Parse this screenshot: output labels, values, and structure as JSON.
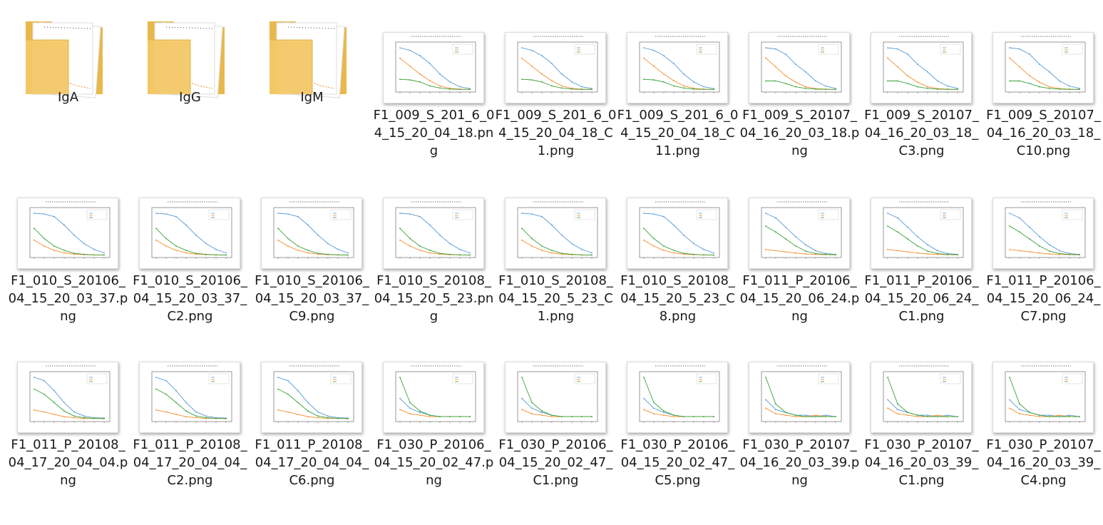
{
  "colors": {
    "blue": "#5a9bd5",
    "orange": "#f28e2b",
    "green": "#3aa13a",
    "folder": "#f3c766"
  },
  "folders": [
    {
      "label": "IgA",
      "icon": "folder-icon"
    },
    {
      "label": "IgG",
      "icon": "folder-icon"
    },
    {
      "label": "IgM",
      "icon": "folder-icon"
    }
  ],
  "files": [
    {
      "label": "F1_009_S_201_6_04_15_20_04_18.png",
      "lines": [
        [
          1.6,
          1.5,
          1.3,
          1.0,
          0.6,
          0.3,
          0.12,
          0.05
        ],
        [
          1.2,
          0.9,
          0.6,
          0.35,
          0.15,
          0.06,
          0.03,
          0.02
        ],
        [
          0.4,
          0.38,
          0.3,
          0.15,
          0.07,
          0.03,
          0.02,
          0.02
        ]
      ]
    },
    {
      "label": "F1_009_S_201_6_04_15_20_04_18_C1.png",
      "lines": [
        [
          1.6,
          1.5,
          1.3,
          1.0,
          0.6,
          0.3,
          0.12,
          0.05
        ],
        [
          1.2,
          0.9,
          0.6,
          0.35,
          0.15,
          0.06,
          0.03,
          0.02
        ],
        [
          0.4,
          0.38,
          0.3,
          0.15,
          0.07,
          0.03,
          0.02,
          0.02
        ]
      ]
    },
    {
      "label": "F1_009_S_201_6_04_15_20_04_18_C11.png",
      "lines": [
        [
          1.6,
          1.5,
          1.3,
          1.0,
          0.6,
          0.3,
          0.12,
          0.05
        ],
        [
          1.2,
          0.9,
          0.6,
          0.35,
          0.15,
          0.06,
          0.03,
          0.02
        ],
        [
          0.4,
          0.38,
          0.3,
          0.15,
          0.07,
          0.03,
          0.02,
          0.02
        ]
      ]
    },
    {
      "label": "F1_009_S_20107_04_16_20_03_18.png",
      "lines": [
        [
          1.65,
          1.6,
          1.4,
          1.0,
          0.7,
          0.35,
          0.15,
          0.06
        ],
        [
          1.25,
          0.9,
          0.55,
          0.3,
          0.12,
          0.05,
          0.03,
          0.02
        ],
        [
          0.35,
          0.35,
          0.25,
          0.12,
          0.06,
          0.03,
          0.02,
          0.02
        ]
      ]
    },
    {
      "label": "F1_009_S_20107_04_16_20_03_18_C3.png",
      "lines": [
        [
          1.65,
          1.6,
          1.4,
          1.0,
          0.7,
          0.35,
          0.15,
          0.06
        ],
        [
          1.25,
          0.9,
          0.55,
          0.3,
          0.12,
          0.05,
          0.03,
          0.02
        ],
        [
          0.35,
          0.35,
          0.25,
          0.12,
          0.06,
          0.03,
          0.02,
          0.02
        ]
      ]
    },
    {
      "label": "F1_009_S_20107_04_16_20_03_18_C10.png",
      "lines": [
        [
          1.65,
          1.6,
          1.4,
          1.0,
          0.7,
          0.35,
          0.15,
          0.06
        ],
        [
          1.25,
          0.9,
          0.55,
          0.3,
          0.12,
          0.05,
          0.03,
          0.02
        ],
        [
          0.35,
          0.35,
          0.25,
          0.12,
          0.06,
          0.03,
          0.02,
          0.02
        ]
      ]
    },
    {
      "label": "F1_010_S_20106_04_15_20_03_37.png",
      "lines": [
        [
          2.5,
          2.45,
          2.3,
          1.8,
          1.2,
          0.7,
          0.35,
          0.15
        ],
        [
          0.9,
          0.55,
          0.3,
          0.15,
          0.07,
          0.04,
          0.03,
          0.02
        ],
        [
          1.6,
          1.0,
          0.55,
          0.3,
          0.12,
          0.06,
          0.03,
          0.02
        ]
      ]
    },
    {
      "label": "F1_010_S_20106_04_15_20_03_37_C2.png",
      "lines": [
        [
          2.5,
          2.45,
          2.3,
          1.8,
          1.2,
          0.7,
          0.35,
          0.15
        ],
        [
          0.9,
          0.55,
          0.3,
          0.15,
          0.07,
          0.04,
          0.03,
          0.02
        ],
        [
          1.6,
          1.0,
          0.55,
          0.3,
          0.12,
          0.06,
          0.03,
          0.02
        ]
      ]
    },
    {
      "label": "F1_010_S_20106_04_15_20_03_37_C9.png",
      "lines": [
        [
          2.5,
          2.45,
          2.3,
          1.8,
          1.2,
          0.7,
          0.35,
          0.15
        ],
        [
          0.9,
          0.55,
          0.3,
          0.15,
          0.07,
          0.04,
          0.03,
          0.02
        ],
        [
          1.6,
          1.0,
          0.55,
          0.3,
          0.12,
          0.06,
          0.03,
          0.02
        ]
      ]
    },
    {
      "label": "F1_010_S_20108_04_15_20_5_23.png",
      "lines": [
        [
          2.5,
          2.45,
          2.3,
          1.8,
          1.2,
          0.7,
          0.35,
          0.15
        ],
        [
          0.9,
          0.55,
          0.3,
          0.15,
          0.07,
          0.04,
          0.03,
          0.02
        ],
        [
          1.6,
          1.0,
          0.55,
          0.3,
          0.12,
          0.06,
          0.03,
          0.02
        ]
      ]
    },
    {
      "label": "F1_010_S_20108_04_15_20_5_23_C1.png",
      "lines": [
        [
          2.5,
          2.45,
          2.3,
          1.8,
          1.2,
          0.7,
          0.35,
          0.15
        ],
        [
          0.9,
          0.55,
          0.3,
          0.15,
          0.07,
          0.04,
          0.03,
          0.02
        ],
        [
          1.6,
          1.0,
          0.55,
          0.3,
          0.12,
          0.06,
          0.03,
          0.02
        ]
      ]
    },
    {
      "label": "F1_010_S_20108_04_15_20_5_23_C8.png",
      "lines": [
        [
          2.5,
          2.45,
          2.3,
          1.8,
          1.2,
          0.7,
          0.35,
          0.15
        ],
        [
          0.9,
          0.55,
          0.3,
          0.15,
          0.07,
          0.04,
          0.03,
          0.02
        ],
        [
          1.6,
          1.0,
          0.55,
          0.3,
          0.12,
          0.06,
          0.03,
          0.02
        ]
      ]
    },
    {
      "label": "F1_011_P_20106_04_15_20_06_24.png",
      "lines": [
        [
          1.8,
          1.6,
          1.2,
          0.8,
          0.45,
          0.2,
          0.08,
          0.04
        ],
        [
          0.25,
          0.2,
          0.15,
          0.1,
          0.06,
          0.04,
          0.03,
          0.02
        ],
        [
          1.25,
          1.0,
          0.7,
          0.4,
          0.18,
          0.08,
          0.04,
          0.03
        ]
      ]
    },
    {
      "label": "F1_011_P_20106_04_15_20_06_24_C1.png",
      "lines": [
        [
          1.8,
          1.6,
          1.2,
          0.8,
          0.45,
          0.2,
          0.08,
          0.04
        ],
        [
          0.25,
          0.2,
          0.15,
          0.1,
          0.06,
          0.04,
          0.03,
          0.02
        ],
        [
          1.25,
          1.0,
          0.7,
          0.4,
          0.18,
          0.08,
          0.04,
          0.03
        ]
      ]
    },
    {
      "label": "F1_011_P_20106_04_15_20_06_24_C7.png",
      "lines": [
        [
          1.8,
          1.6,
          1.2,
          0.8,
          0.45,
          0.2,
          0.08,
          0.04
        ],
        [
          0.25,
          0.2,
          0.15,
          0.1,
          0.06,
          0.04,
          0.03,
          0.02
        ],
        [
          1.25,
          1.0,
          0.7,
          0.4,
          0.18,
          0.08,
          0.04,
          0.03
        ]
      ]
    },
    {
      "label": "F1_011_P_20108_04_17_20_04_04.png",
      "lines": [
        [
          1.25,
          1.15,
          0.85,
          0.5,
          0.22,
          0.1,
          0.05,
          0.04
        ],
        [
          0.28,
          0.22,
          0.15,
          0.08,
          0.05,
          0.03,
          0.03,
          0.02
        ],
        [
          0.9,
          0.75,
          0.5,
          0.25,
          0.1,
          0.05,
          0.03,
          0.03
        ]
      ]
    },
    {
      "label": "F1_011_P_20108_04_17_20_04_04_C2.png",
      "lines": [
        [
          1.25,
          1.15,
          0.85,
          0.5,
          0.22,
          0.1,
          0.05,
          0.04
        ],
        [
          0.28,
          0.22,
          0.15,
          0.08,
          0.05,
          0.03,
          0.03,
          0.02
        ],
        [
          0.9,
          0.75,
          0.5,
          0.25,
          0.1,
          0.05,
          0.03,
          0.03
        ]
      ]
    },
    {
      "label": "F1_011_P_20108_04_17_20_04_04_C6.png",
      "lines": [
        [
          1.25,
          1.15,
          0.85,
          0.5,
          0.22,
          0.1,
          0.05,
          0.04
        ],
        [
          0.28,
          0.22,
          0.15,
          0.08,
          0.05,
          0.03,
          0.03,
          0.02
        ],
        [
          0.9,
          0.75,
          0.5,
          0.25,
          0.1,
          0.05,
          0.03,
          0.03
        ]
      ]
    },
    {
      "label": "F1_030_P_20106_04_15_20_02_47.png",
      "lines": [
        [
          0.15,
          0.08,
          0.05,
          0.03,
          0.02,
          0.02,
          0.02,
          0.02
        ],
        [
          0.07,
          0.04,
          0.03,
          0.02,
          0.02,
          0.02,
          0.02,
          0.02
        ],
        [
          0.3,
          0.12,
          0.06,
          0.03,
          0.02,
          0.02,
          0.02,
          0.02
        ]
      ]
    },
    {
      "label": "F1_030_P_20106_04_15_20_02_47_C1.png",
      "lines": [
        [
          0.15,
          0.08,
          0.05,
          0.03,
          0.02,
          0.02,
          0.02,
          0.02
        ],
        [
          0.07,
          0.04,
          0.03,
          0.02,
          0.02,
          0.02,
          0.02,
          0.02
        ],
        [
          0.3,
          0.12,
          0.06,
          0.03,
          0.02,
          0.02,
          0.02,
          0.02
        ]
      ]
    },
    {
      "label": "F1_030_P_20106_04_15_20_02_47_C5.png",
      "lines": [
        [
          0.15,
          0.08,
          0.05,
          0.03,
          0.02,
          0.02,
          0.02,
          0.02
        ],
        [
          0.07,
          0.04,
          0.03,
          0.02,
          0.02,
          0.02,
          0.02,
          0.02
        ],
        [
          0.3,
          0.12,
          0.06,
          0.03,
          0.02,
          0.02,
          0.02,
          0.02
        ]
      ]
    },
    {
      "label": "F1_030_P_20107_04_16_20_03_39.png",
      "lines": [
        [
          0.14,
          0.07,
          0.05,
          0.03,
          0.03,
          0.02,
          0.03,
          0.02
        ],
        [
          0.08,
          0.04,
          0.03,
          0.02,
          0.02,
          0.03,
          0.02,
          0.02
        ],
        [
          0.3,
          0.11,
          0.05,
          0.03,
          0.02,
          0.02,
          0.02,
          0.02
        ]
      ]
    },
    {
      "label": "F1_030_P_20107_04_16_20_03_39_C1.png",
      "lines": [
        [
          0.14,
          0.07,
          0.05,
          0.03,
          0.03,
          0.02,
          0.03,
          0.02
        ],
        [
          0.08,
          0.04,
          0.03,
          0.02,
          0.02,
          0.03,
          0.02,
          0.02
        ],
        [
          0.3,
          0.11,
          0.05,
          0.03,
          0.02,
          0.02,
          0.02,
          0.02
        ]
      ]
    },
    {
      "label": "F1_030_P_20107_04_16_20_03_39_C4.png",
      "lines": [
        [
          0.14,
          0.07,
          0.05,
          0.03,
          0.03,
          0.02,
          0.03,
          0.02
        ],
        [
          0.08,
          0.04,
          0.03,
          0.02,
          0.02,
          0.03,
          0.02,
          0.02
        ],
        [
          0.3,
          0.11,
          0.05,
          0.03,
          0.02,
          0.02,
          0.02,
          0.02
        ]
      ]
    }
  ]
}
